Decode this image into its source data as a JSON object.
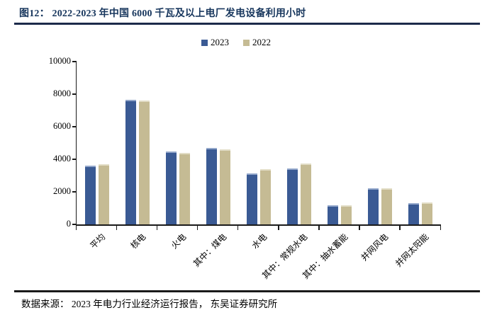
{
  "figure": {
    "title": "图12： 2022-2023 年中国 6000 千瓦及以上电厂发电设备利用小时",
    "source": "数据来源： 2023 年电力行业经济运行报告， 东吴证券研究所",
    "title_color": "#17365d"
  },
  "chart_data": {
    "type": "bar",
    "title": "2022-2023 年中国 6000 千瓦及以上电厂发电设备利用小时",
    "xlabel": "",
    "ylabel": "",
    "unit": "小时",
    "categories": [
      "平均",
      "核电",
      "火电",
      "其中：煤电",
      "水电",
      "其中：常规水电",
      "其中：抽水蓄能",
      "并网风电",
      "并网太阳能"
    ],
    "series": [
      {
        "name": "2023",
        "color": "#3a5a94",
        "highlight": "#93a7cb",
        "values": [
          3592,
          7670,
          4466,
          4685,
          3133,
          3423,
          1175,
          2225,
          1286
        ]
      },
      {
        "name": "2022",
        "color": "#c5bb94",
        "highlight": "#e2ddc6",
        "values": [
          3687,
          7616,
          4379,
          4594,
          3412,
          3718,
          1190,
          2221,
          1337
        ]
      }
    ],
    "ylim": [
      0,
      10000
    ],
    "yticks": [
      0,
      2000,
      4000,
      6000,
      8000,
      10000
    ],
    "legend_position": "top-center",
    "grid": false
  }
}
